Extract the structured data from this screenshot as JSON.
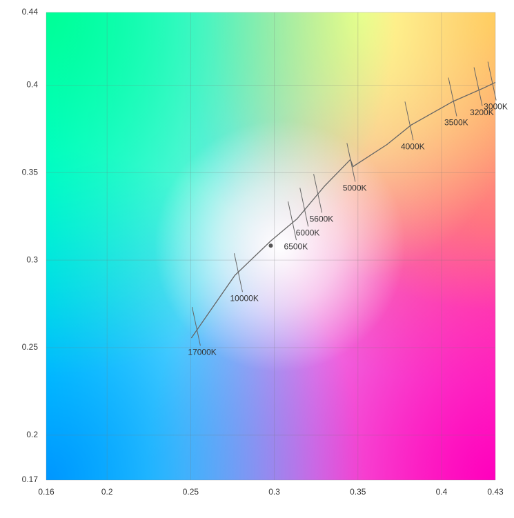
{
  "chart_data": {
    "type": "line",
    "xlim": [
      0.1636,
      0.4322
    ],
    "ylim": [
      0.1743,
      0.4416
    ],
    "xticks": [
      {
        "value": 0.1636,
        "label": "0.16"
      },
      0.2,
      0.25,
      0.3,
      0.35,
      0.4,
      {
        "value": 0.4322,
        "label": "0.43"
      }
    ],
    "yticks": [
      {
        "value": 0.1743,
        "label": "0.17"
      },
      0.2,
      0.25,
      0.3,
      0.35,
      0.4,
      {
        "value": 0.4416,
        "label": "0.44"
      }
    ],
    "grid": true,
    "series": [
      {
        "color": "#666666",
        "x": [
          0.2504,
          0.2764,
          0.2979,
          0.3136,
          0.3302,
          0.3455,
          0.3471,
          0.3674,
          0.3818,
          0.4066,
          0.4252,
          0.4322
        ],
        "values": [
          0.2555,
          0.2913,
          0.311,
          0.3236,
          0.3425,
          0.3575,
          0.3535,
          0.3661,
          0.3772,
          0.3906,
          0.3984,
          0.4016
        ]
      }
    ],
    "isotherms": [
      {
        "label": "17000K",
        "x": 0.2533,
        "y": 0.2606
      },
      {
        "label": "10000K",
        "x": 0.2785,
        "y": 0.2913
      },
      {
        "label": "6500K",
        "x": 0.3107,
        "y": 0.3209
      },
      {
        "label": "6000K",
        "x": 0.3178,
        "y": 0.3287
      },
      {
        "label": "5600K",
        "x": 0.326,
        "y": 0.3366
      },
      {
        "label": "5000K",
        "x": 0.3459,
        "y": 0.3543
      },
      {
        "label": "4000K",
        "x": 0.3806,
        "y": 0.378
      },
      {
        "label": "3500K",
        "x": 0.4066,
        "y": 0.3917
      },
      {
        "label": "3200K",
        "x": 0.4219,
        "y": 0.3976
      },
      {
        "label": "3000K",
        "x": 0.4302,
        "y": 0.4008
      }
    ],
    "point": {
      "x": 0.2979,
      "y": 0.3083,
      "color": "#555555"
    }
  }
}
